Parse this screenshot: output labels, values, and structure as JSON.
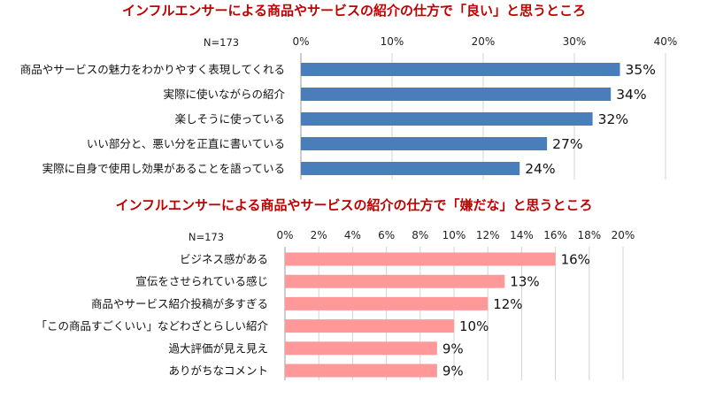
{
  "chart_data": [
    {
      "type": "bar",
      "orientation": "horizontal",
      "title": "インフルエンサーによる商品やサービスの紹介の仕方で「良い」と思うところ",
      "n_label": "N=173",
      "categories": [
        "商品やサービスの魅力をわかりやすく表現してくれる",
        "実際に使いながらの紹介",
        "楽しそうに使っている",
        "いい部分と、悪い分を正直に書いている",
        "実際に自身で使用し効果があることを語っている"
      ],
      "values": [
        35,
        34,
        32,
        27,
        24
      ],
      "value_labels": [
        "35%",
        "34%",
        "32%",
        "27%",
        "24%"
      ],
      "xlim": [
        0,
        40
      ],
      "ticks": [
        0,
        10,
        20,
        30,
        40
      ],
      "tick_labels": [
        "0%",
        "10%",
        "20%",
        "30%",
        "40%"
      ],
      "axis_position": "top",
      "grid": true,
      "bar_color": "#4a7ebb",
      "title_color": "#c00000"
    },
    {
      "type": "bar",
      "orientation": "horizontal",
      "title": "インフルエンサーによる商品やサービスの紹介の仕方で「嫌だな」と思うところ",
      "n_label": "N=173",
      "categories": [
        "ビジネス感がある",
        "宣伝をさせられている感じ",
        "商品やサービス紹介投稿が多すぎる",
        "「この商品すごくいい」などわざとらしい紹介",
        "過大評価が見え見え",
        "ありがちなコメント"
      ],
      "values": [
        16,
        13,
        12,
        10,
        9,
        9
      ],
      "value_labels": [
        "16%",
        "13%",
        "12%",
        "10%",
        "9%",
        "9%"
      ],
      "xlim": [
        0,
        20
      ],
      "ticks": [
        0,
        2,
        4,
        6,
        8,
        10,
        12,
        14,
        16,
        18,
        20
      ],
      "tick_labels": [
        "0%",
        "2%",
        "4%",
        "6%",
        "8%",
        "10%",
        "12%",
        "14%",
        "16%",
        "18%",
        "20%"
      ],
      "axis_position": "top",
      "grid": true,
      "bar_color": "#ff9999",
      "title_color": "#c00000"
    }
  ]
}
